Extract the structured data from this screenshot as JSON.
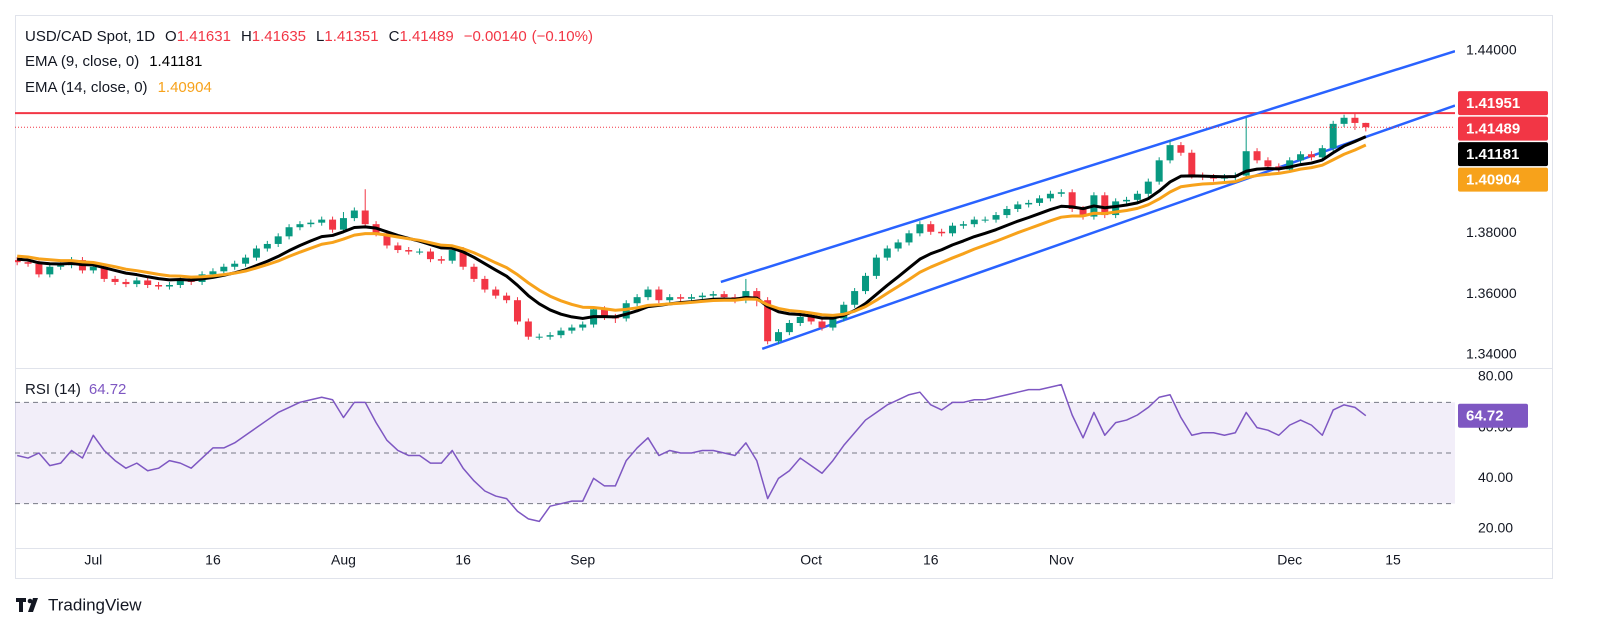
{
  "branding": "TradingView",
  "chart_data": [
    {
      "type": "candlestick",
      "title": "USD/CAD Spot, 1D",
      "header": [
        {
          "label": "O",
          "value": 1.41631
        },
        {
          "label": "H",
          "value": 1.41635
        },
        {
          "label": "L",
          "value": 1.41351
        },
        {
          "label": "C",
          "value": 1.41489
        }
      ],
      "change": {
        "value": -0.0014,
        "label": "−0.00140"
      },
      "change_pct": {
        "value": -0.1,
        "label": "(−0.10%)"
      },
      "up_color": "#089981",
      "down_color": "#f23645",
      "xlim": [
        -7.2,
        125.2
      ],
      "xticks": [
        {
          "value": 0,
          "label": "Jul"
        },
        {
          "value": 11,
          "label": "16"
        },
        {
          "value": 23,
          "label": "Aug"
        },
        {
          "value": 34,
          "label": "16"
        },
        {
          "value": 45,
          "label": "Sep"
        },
        {
          "value": 66,
          "label": "Oct"
        },
        {
          "value": 77,
          "label": "16"
        },
        {
          "value": 89,
          "label": "Nov"
        },
        {
          "value": 110,
          "label": "Dec"
        },
        {
          "value": 119.5,
          "label": "15"
        }
      ],
      "ylim": [
        1.3357,
        1.4518
      ],
      "yticks": [
        {
          "value": 1.44,
          "label": "1.44000"
        },
        {
          "value": 1.38,
          "label": "1.38000"
        },
        {
          "value": 1.36,
          "label": "1.36000"
        },
        {
          "value": 1.34,
          "label": "1.34000"
        }
      ],
      "grid": false,
      "x": [
        -7,
        -6,
        -5,
        -4,
        -3,
        -2,
        -1,
        0,
        1,
        2,
        3,
        4,
        5,
        6,
        7,
        8,
        9,
        10,
        11,
        12,
        13,
        14,
        15,
        16,
        17,
        18,
        19,
        20,
        21,
        22,
        23,
        24,
        25,
        26,
        27,
        28,
        29,
        30,
        31,
        32,
        33,
        34,
        35,
        36,
        37,
        38,
        39,
        40,
        41,
        42,
        43,
        44,
        45,
        46,
        47,
        48,
        49,
        50,
        51,
        52,
        53,
        54,
        55,
        56,
        57,
        58,
        59,
        60,
        61,
        62,
        63,
        64,
        65,
        66,
        67,
        68,
        69,
        70,
        71,
        72,
        73,
        74,
        75,
        76,
        77,
        78,
        79,
        80,
        81,
        82,
        83,
        84,
        85,
        86,
        87,
        88,
        89,
        90,
        91,
        92,
        93,
        94,
        95,
        96,
        97,
        98,
        99,
        100,
        101,
        102,
        103,
        104,
        105,
        106,
        107,
        108,
        109,
        110,
        111,
        112,
        113,
        114,
        115,
        116,
        117
      ],
      "open": [
        1.3712,
        1.3705,
        1.37,
        1.3665,
        1.369,
        1.3695,
        1.3712,
        1.3678,
        1.369,
        1.365,
        1.364,
        1.3633,
        1.3645,
        1.363,
        1.3625,
        1.363,
        1.365,
        1.364,
        1.3665,
        1.3675,
        1.369,
        1.37,
        1.372,
        1.375,
        1.3765,
        1.379,
        1.382,
        1.383,
        1.3835,
        1.3845,
        1.3812,
        1.385,
        1.3875,
        1.383,
        1.38,
        1.376,
        1.3745,
        1.374,
        1.374,
        1.3715,
        1.371,
        1.3745,
        1.369,
        1.365,
        1.3615,
        1.3595,
        1.358,
        1.351,
        1.346,
        1.346,
        1.3465,
        1.348,
        1.349,
        1.35,
        1.355,
        1.3525,
        1.352,
        1.357,
        1.359,
        1.3615,
        1.358,
        1.359,
        1.3585,
        1.359,
        1.3595,
        1.36,
        1.359,
        1.358,
        1.361,
        1.358,
        1.3445,
        1.3475,
        1.3505,
        1.3525,
        1.351,
        1.349,
        1.352,
        1.3565,
        1.361,
        1.366,
        1.372,
        1.375,
        1.377,
        1.38,
        1.383,
        1.3805,
        1.38,
        1.3825,
        1.383,
        1.3845,
        1.3845,
        1.386,
        1.388,
        1.3895,
        1.39,
        1.3915,
        1.393,
        1.3935,
        1.388,
        1.3855,
        1.3925,
        1.386,
        1.3905,
        1.391,
        1.393,
        1.397,
        1.404,
        1.409,
        1.4065,
        1.399,
        1.3985,
        1.398,
        1.3985,
        1.399,
        1.407,
        1.404,
        1.402,
        1.401,
        1.404,
        1.406,
        1.405,
        1.408,
        1.416,
        1.418,
        1.41631
      ],
      "high": [
        1.3722,
        1.3715,
        1.371,
        1.37,
        1.3705,
        1.3722,
        1.3722,
        1.37,
        1.37,
        1.366,
        1.365,
        1.3655,
        1.3655,
        1.364,
        1.364,
        1.366,
        1.366,
        1.3675,
        1.3685,
        1.37,
        1.371,
        1.373,
        1.376,
        1.3775,
        1.38,
        1.383,
        1.384,
        1.3845,
        1.3855,
        1.3855,
        1.387,
        1.3885,
        1.3945,
        1.384,
        1.381,
        1.377,
        1.3755,
        1.375,
        1.375,
        1.3725,
        1.3755,
        1.3755,
        1.37,
        1.366,
        1.3625,
        1.3605,
        1.359,
        1.352,
        1.347,
        1.3475,
        1.349,
        1.35,
        1.351,
        1.356,
        1.356,
        1.3535,
        1.358,
        1.36,
        1.3625,
        1.3625,
        1.36,
        1.36,
        1.36,
        1.3605,
        1.361,
        1.361,
        1.36,
        1.365,
        1.362,
        1.359,
        1.3485,
        1.3515,
        1.3535,
        1.3535,
        1.352,
        1.353,
        1.3575,
        1.362,
        1.367,
        1.373,
        1.376,
        1.378,
        1.381,
        1.384,
        1.384,
        1.3815,
        1.3835,
        1.384,
        1.3855,
        1.3855,
        1.387,
        1.389,
        1.3905,
        1.391,
        1.3925,
        1.394,
        1.3945,
        1.3945,
        1.389,
        1.3935,
        1.3935,
        1.3915,
        1.392,
        1.394,
        1.398,
        1.405,
        1.4105,
        1.41,
        1.4075,
        1.4,
        1.3995,
        1.3995,
        1.4,
        1.418,
        1.408,
        1.405,
        1.403,
        1.405,
        1.407,
        1.407,
        1.409,
        1.417,
        1.419,
        1.4195,
        1.41635
      ],
      "low": [
        1.3695,
        1.369,
        1.3655,
        1.3655,
        1.368,
        1.3685,
        1.3668,
        1.3668,
        1.364,
        1.363,
        1.3623,
        1.3623,
        1.362,
        1.3615,
        1.3615,
        1.362,
        1.363,
        1.363,
        1.3655,
        1.3665,
        1.368,
        1.369,
        1.371,
        1.374,
        1.3755,
        1.378,
        1.381,
        1.382,
        1.3825,
        1.3802,
        1.3802,
        1.384,
        1.382,
        1.379,
        1.375,
        1.3735,
        1.373,
        1.373,
        1.3705,
        1.37,
        1.37,
        1.368,
        1.364,
        1.3605,
        1.3585,
        1.357,
        1.35,
        1.345,
        1.345,
        1.345,
        1.3455,
        1.347,
        1.348,
        1.349,
        1.3515,
        1.3505,
        1.351,
        1.356,
        1.358,
        1.357,
        1.357,
        1.3575,
        1.3575,
        1.358,
        1.3585,
        1.358,
        1.357,
        1.357,
        1.356,
        1.3435,
        1.3435,
        1.3465,
        1.3495,
        1.35,
        1.348,
        1.348,
        1.351,
        1.3555,
        1.36,
        1.365,
        1.371,
        1.374,
        1.376,
        1.379,
        1.3795,
        1.379,
        1.379,
        1.3815,
        1.382,
        1.3835,
        1.3835,
        1.385,
        1.387,
        1.3885,
        1.389,
        1.3905,
        1.392,
        1.387,
        1.3845,
        1.3845,
        1.385,
        1.385,
        1.3895,
        1.39,
        1.392,
        1.396,
        1.403,
        1.4055,
        1.398,
        1.3975,
        1.397,
        1.3965,
        1.3975,
        1.398,
        1.403,
        1.401,
        1.4,
        1.4,
        1.403,
        1.404,
        1.404,
        1.407,
        1.415,
        1.414,
        1.41351
      ],
      "close": [
        1.3705,
        1.37,
        1.3665,
        1.369,
        1.3695,
        1.3712,
        1.3678,
        1.369,
        1.365,
        1.364,
        1.3633,
        1.3645,
        1.363,
        1.3625,
        1.363,
        1.365,
        1.364,
        1.3665,
        1.3675,
        1.369,
        1.37,
        1.372,
        1.375,
        1.3765,
        1.379,
        1.382,
        1.383,
        1.3835,
        1.3845,
        1.3812,
        1.385,
        1.3875,
        1.383,
        1.38,
        1.376,
        1.3745,
        1.374,
        1.374,
        1.3715,
        1.371,
        1.3745,
        1.369,
        1.365,
        1.3615,
        1.3595,
        1.358,
        1.351,
        1.346,
        1.346,
        1.3465,
        1.348,
        1.349,
        1.35,
        1.355,
        1.3525,
        1.352,
        1.357,
        1.359,
        1.3615,
        1.358,
        1.359,
        1.3585,
        1.359,
        1.3595,
        1.36,
        1.359,
        1.358,
        1.361,
        1.358,
        1.3445,
        1.3475,
        1.3505,
        1.3525,
        1.351,
        1.349,
        1.352,
        1.3565,
        1.361,
        1.366,
        1.372,
        1.375,
        1.377,
        1.38,
        1.383,
        1.3805,
        1.38,
        1.3825,
        1.383,
        1.3845,
        1.3845,
        1.386,
        1.388,
        1.3895,
        1.39,
        1.3915,
        1.393,
        1.3935,
        1.388,
        1.3855,
        1.3925,
        1.386,
        1.3905,
        1.391,
        1.393,
        1.397,
        1.404,
        1.409,
        1.4065,
        1.399,
        1.3985,
        1.398,
        1.3985,
        1.399,
        1.407,
        1.404,
        1.402,
        1.401,
        1.404,
        1.406,
        1.405,
        1.408,
        1.416,
        1.418,
        1.4163,
        1.41489
      ],
      "series": [
        {
          "name": "EMA (9, close, 0)",
          "color": "#000000",
          "values": [
            1.3715,
            1.3712,
            1.3703,
            1.37,
            1.3699,
            1.3701,
            1.3697,
            1.3696,
            1.3687,
            1.3678,
            1.3669,
            1.3664,
            1.3657,
            1.3651,
            1.3647,
            1.3648,
            1.3646,
            1.365,
            1.3655,
            1.3662,
            1.367,
            1.368,
            1.3694,
            1.3708,
            1.3724,
            1.3743,
            1.376,
            1.3775,
            1.3789,
            1.3793,
            1.3805,
            1.3819,
            1.3821,
            1.3817,
            1.3805,
            1.3793,
            1.3783,
            1.3774,
            1.3763,
            1.3752,
            1.3751,
            1.3739,
            1.3721,
            1.37,
            1.3679,
            1.3659,
            1.3629,
            1.3595,
            1.3568,
            1.3548,
            1.3534,
            1.3525,
            1.352,
            1.3526,
            1.3526,
            1.3525,
            1.3534,
            1.3545,
            1.3559,
            1.3563,
            1.3568,
            1.3572,
            1.3575,
            1.3579,
            1.3583,
            1.3584,
            1.3583,
            1.3589,
            1.3587,
            1.3559,
            1.3542,
            1.3535,
            1.3533,
            1.3528,
            1.3521,
            1.3521,
            1.353,
            1.3546,
            1.3569,
            1.3599,
            1.3629,
            1.3657,
            1.3686,
            1.3715,
            1.3733,
            1.3746,
            1.3762,
            1.3775,
            1.3789,
            1.38,
            1.3812,
            1.3826,
            1.384,
            1.3852,
            1.3865,
            1.3878,
            1.3889,
            1.3887,
            1.3881,
            1.389,
            1.3884,
            1.3888,
            1.3893,
            1.39,
            1.3914,
            1.3939,
            1.3969,
            1.3988,
            1.3989,
            1.3988,
            1.3987,
            1.3986,
            1.3987,
            1.4004,
            1.4011,
            1.4013,
            1.4012,
            1.4018,
            1.4026,
            1.4031,
            1.4041,
            1.4065,
            1.4087,
            1.4102,
            1.41181
          ]
        },
        {
          "name": "EMA (14, close, 0)",
          "color": "#f7a21b",
          "values": [
            1.3725,
            1.3722,
            1.3716,
            1.3713,
            1.371,
            1.371,
            1.3706,
            1.3704,
            1.3697,
            1.369,
            1.3682,
            1.3677,
            1.3671,
            1.3665,
            1.366,
            1.3659,
            1.3656,
            1.3657,
            1.366,
            1.3664,
            1.3669,
            1.3676,
            1.3686,
            1.3697,
            1.3709,
            1.3724,
            1.3738,
            1.3751,
            1.3764,
            1.377,
            1.3781,
            1.3794,
            1.3799,
            1.3799,
            1.3794,
            1.3788,
            1.3782,
            1.3777,
            1.3769,
            1.3761,
            1.3759,
            1.3749,
            1.3736,
            1.372,
            1.3703,
            1.3687,
            1.3664,
            1.3637,
            1.3613,
            1.3593,
            1.3578,
            1.3566,
            1.3557,
            1.3556,
            1.3552,
            1.3547,
            1.355,
            1.3555,
            1.3563,
            1.3565,
            1.3568,
            1.357,
            1.3573,
            1.3576,
            1.3579,
            1.358,
            1.358,
            1.3584,
            1.3583,
            1.3565,
            1.3553,
            1.3546,
            1.3543,
            1.3538,
            1.3532,
            1.353,
            1.3534,
            1.3544,
            1.3559,
            1.358,
            1.3603,
            1.3625,
            1.3648,
            1.3672,
            1.3689,
            1.3704,
            1.3719,
            1.3733,
            1.3748,
            1.3761,
            1.3774,
            1.3788,
            1.3802,
            1.3815,
            1.3828,
            1.3841,
            1.3853,
            1.3857,
            1.3857,
            1.3866,
            1.3865,
            1.387,
            1.3875,
            1.3882,
            1.3894,
            1.3913,
            1.3936,
            1.3953,
            1.3958,
            1.3962,
            1.3964,
            1.3967,
            1.397,
            1.3983,
            1.399,
            1.3994,
            1.3997,
            1.4003,
            1.4011,
            1.4016,
            1.4024,
            1.4042,
            1.406,
            1.4074,
            1.40904
          ]
        }
      ],
      "trendlines": [
        {
          "color": "#2962ff",
          "x": [
            57.7,
            125.2
          ],
          "y": [
            1.364,
            1.4399
          ]
        },
        {
          "color": "#2962ff",
          "x": [
            61.5,
            125.2
          ],
          "y": [
            1.342,
            1.422
          ]
        }
      ],
      "resistance": {
        "value": 1.41951,
        "color": "#f23645"
      }
    },
    {
      "type": "line",
      "title": "RSI (14)",
      "color": "#7e57c2",
      "ylim": [
        12.5,
        83.55
      ],
      "yticks": [
        {
          "value": 80,
          "label": "80.00"
        },
        {
          "value": 60,
          "label": "60.00"
        },
        {
          "value": 40,
          "label": "40.00"
        },
        {
          "value": 20,
          "label": "20.00"
        }
      ],
      "levels": [
        70,
        50,
        30
      ],
      "values": [
        49,
        48,
        50,
        45,
        46,
        51,
        48,
        57,
        51,
        47,
        44,
        46,
        43,
        44,
        47,
        46,
        44,
        48,
        52,
        52,
        54,
        57,
        60,
        63,
        66,
        68,
        70,
        71,
        72,
        71,
        64,
        70,
        70,
        62,
        55,
        51,
        49,
        49,
        46,
        46,
        51,
        44,
        39,
        35,
        33,
        32,
        27,
        24,
        23,
        29,
        30,
        31,
        31,
        40,
        37,
        37,
        47,
        52,
        56,
        49,
        51,
        50,
        50,
        51,
        51,
        50,
        49,
        54,
        47,
        32,
        40,
        43,
        48,
        45,
        42,
        47,
        53,
        58,
        63,
        66,
        69,
        71,
        73,
        74,
        69,
        67,
        70,
        70,
        71,
        71,
        72,
        73,
        74,
        75,
        75,
        76,
        77,
        65,
        56,
        66,
        57,
        62,
        63,
        65,
        68,
        72,
        73,
        64,
        57,
        58,
        58,
        57,
        58,
        66,
        60,
        59,
        57,
        61,
        63,
        61,
        57,
        67,
        69,
        68,
        64.72
      ]
    }
  ]
}
